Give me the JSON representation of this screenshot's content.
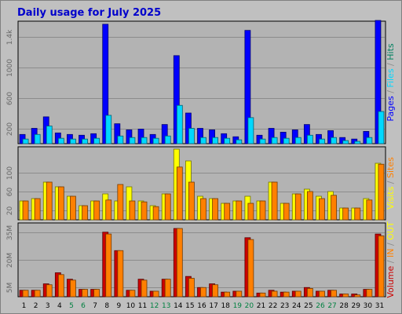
{
  "title": "Daily usage for July 2025",
  "colors": {
    "background": "#c0c0c0",
    "panel": "#b3b3b3",
    "gridline": "#8c8c8c",
    "pages": "#0000ff",
    "files": "#00d8ff",
    "hits": "#00805f",
    "visits": "#ffff00",
    "sites": "#ff8000",
    "volume": "#cc0000",
    "in": "#ff8000",
    "out": "#ffff00",
    "weekend_day": "#008040",
    "weekday_day": "#000000",
    "title": "#0000cc"
  },
  "chart_data": [
    {
      "type": "bar",
      "panel": "top",
      "categories": [
        "1",
        "2",
        "3",
        "4",
        "5",
        "6",
        "7",
        "8",
        "9",
        "10",
        "11",
        "12",
        "13",
        "14",
        "15",
        "16",
        "17",
        "18",
        "19",
        "20",
        "21",
        "22",
        "23",
        "24",
        "25",
        "26",
        "27",
        "28",
        "29",
        "30",
        "31"
      ],
      "weekend_days": [
        "5",
        "6",
        "12",
        "13",
        "19",
        "20",
        "26",
        "27"
      ],
      "ytick_labels": [
        "200",
        "600",
        "1000",
        "1.4k"
      ],
      "ytick_values": [
        200,
        600,
        1000,
        1400
      ],
      "ylim": [
        0,
        1600
      ],
      "right_label": [
        {
          "text": "Pages",
          "color_key": "pages"
        },
        {
          "text": " / ",
          "color_key": "gridline"
        },
        {
          "text": "Files",
          "color_key": "files"
        },
        {
          "text": " / ",
          "color_key": "gridline"
        },
        {
          "text": "Hits",
          "color_key": "hits"
        }
      ],
      "series": [
        {
          "name": "Pages",
          "color_key": "pages",
          "values": [
            120,
            200,
            350,
            140,
            120,
            110,
            130,
            1560,
            260,
            180,
            190,
            120,
            250,
            1150,
            400,
            200,
            180,
            130,
            90,
            1480,
            110,
            200,
            150,
            180,
            250,
            120,
            170,
            80,
            60,
            160,
            1610
          ]
        },
        {
          "name": "Files",
          "color_key": "files",
          "values": [
            60,
            120,
            230,
            70,
            60,
            60,
            70,
            370,
            100,
            80,
            80,
            70,
            100,
            500,
            200,
            80,
            80,
            70,
            50,
            340,
            60,
            80,
            70,
            80,
            110,
            60,
            80,
            40,
            30,
            80,
            420
          ]
        }
      ]
    },
    {
      "type": "bar",
      "panel": "middle",
      "categories": [
        "1",
        "2",
        "3",
        "4",
        "5",
        "6",
        "7",
        "8",
        "9",
        "10",
        "11",
        "12",
        "13",
        "14",
        "15",
        "16",
        "17",
        "18",
        "19",
        "20",
        "21",
        "22",
        "23",
        "24",
        "25",
        "26",
        "27",
        "28",
        "29",
        "30",
        "31"
      ],
      "ytick_labels": [
        "20",
        "60",
        "100"
      ],
      "ytick_values": [
        20,
        60,
        100
      ],
      "ylim": [
        0,
        155
      ],
      "right_label": [
        {
          "text": "Visits",
          "color_key": "visits"
        },
        {
          "text": " / ",
          "color_key": "gridline"
        },
        {
          "text": "Sites",
          "color_key": "sites"
        }
      ],
      "series": [
        {
          "name": "Visits",
          "color_key": "visits",
          "values": [
            40,
            45,
            80,
            70,
            50,
            30,
            40,
            55,
            40,
            70,
            40,
            30,
            55,
            150,
            125,
            50,
            45,
            35,
            40,
            50,
            40,
            80,
            35,
            55,
            65,
            50,
            60,
            25,
            25,
            45,
            120
          ]
        },
        {
          "name": "Sites",
          "color_key": "sites",
          "values": [
            40,
            45,
            80,
            70,
            50,
            30,
            40,
            42,
            75,
            40,
            38,
            28,
            55,
            112,
            80,
            45,
            45,
            35,
            40,
            35,
            40,
            80,
            35,
            55,
            60,
            45,
            52,
            25,
            25,
            42,
            118
          ]
        }
      ]
    },
    {
      "type": "bar",
      "panel": "bottom",
      "categories": [
        "1",
        "2",
        "3",
        "4",
        "5",
        "6",
        "7",
        "8",
        "9",
        "10",
        "11",
        "12",
        "13",
        "14",
        "15",
        "16",
        "17",
        "18",
        "19",
        "20",
        "21",
        "22",
        "23",
        "24",
        "25",
        "26",
        "27",
        "28",
        "29",
        "30",
        "31"
      ],
      "ytick_labels": [
        "5M",
        "20M",
        "35M"
      ],
      "ytick_values": [
        5,
        20,
        35
      ],
      "y_unit": "MB",
      "ylim": [
        0,
        40
      ],
      "right_label": [
        {
          "text": "Volume",
          "color_key": "volume"
        },
        {
          "text": " / ",
          "color_key": "gridline"
        },
        {
          "text": "IN",
          "color_key": "in"
        },
        {
          "text": " / ",
          "color_key": "gridline"
        },
        {
          "text": "OUT",
          "color_key": "out"
        }
      ],
      "series": [
        {
          "name": "Volume",
          "color_key": "volume",
          "values": [
            3.5,
            3.5,
            7,
            13,
            9.5,
            4,
            4,
            35,
            25,
            3.5,
            9.5,
            3,
            9.5,
            37,
            11,
            5,
            7,
            2.5,
            3,
            32,
            2,
            3.5,
            2.5,
            3,
            5,
            3,
            3.5,
            1.5,
            1.5,
            4,
            34
          ]
        },
        {
          "name": "IN",
          "color_key": "in",
          "values": [
            3.5,
            3.5,
            6.5,
            12,
            9,
            4,
            4,
            34,
            25,
            3.5,
            9,
            3,
            9.5,
            37,
            10,
            5,
            6.5,
            2.5,
            3,
            31,
            2,
            3,
            2.5,
            3,
            4.5,
            3,
            3.5,
            1.5,
            1,
            4,
            33
          ]
        }
      ]
    }
  ]
}
